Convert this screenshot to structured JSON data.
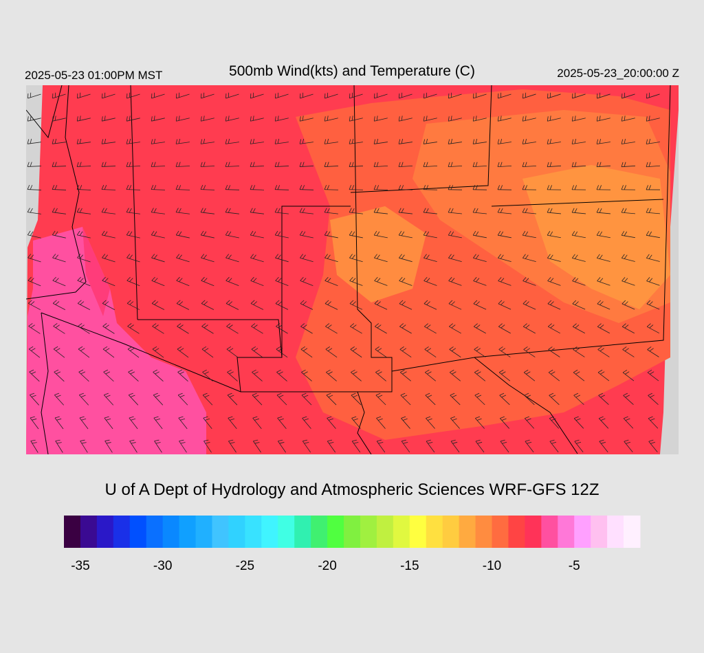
{
  "header": {
    "left": "2025-05-23 01:00PM MST",
    "title": "500mb Wind(kts) and Temperature (C)",
    "right": "2025-05-23_20:00:00 Z"
  },
  "credit": "U of A Dept of Hydrology and Atmospheric Sciences WRF-GFS 12Z",
  "colorbar": {
    "range": [
      -36,
      -1
    ],
    "ticks": [
      -35,
      -30,
      -25,
      -20,
      -15,
      -10,
      -5
    ],
    "colors": [
      "#3a0042",
      "#3a0a92",
      "#2a18c8",
      "#1a30e8",
      "#0050ff",
      "#0a70ff",
      "#0a88ff",
      "#10a0ff",
      "#20b0ff",
      "#40c4ff",
      "#30d2ff",
      "#38e2ff",
      "#40f4ff",
      "#40ffe4",
      "#30f0b0",
      "#40f070",
      "#50ff40",
      "#80f040",
      "#a0f040",
      "#c0f040",
      "#e0f840",
      "#ffff40",
      "#ffe040",
      "#ffcc40",
      "#ffaa40",
      "#ff8c40",
      "#ff6c40",
      "#ff4444",
      "#ff3358",
      "#ff50a0",
      "#ff78d8",
      "#ffa0ff",
      "#ffc0f0",
      "#ffe0ff",
      "#fff0ff"
    ]
  }
}
